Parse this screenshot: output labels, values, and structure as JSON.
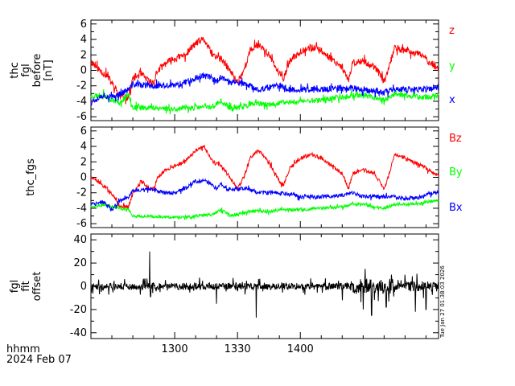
{
  "chart_data": [
    {
      "type": "line",
      "ylabel": [
        "thc",
        "fgl",
        "before",
        "[nT]"
      ],
      "ylim": [
        -6.5,
        6.5
      ],
      "yticks": [
        -6,
        -4,
        -2,
        0,
        2,
        4,
        6
      ],
      "series": [
        {
          "name": "z",
          "color": "#ff0000",
          "seed": 11,
          "noise": 0.45,
          "anchors": [
            [
              0,
              1.2
            ],
            [
              3,
              0.3
            ],
            [
              8,
              -0.8
            ],
            [
              12,
              -2.5
            ],
            [
              14,
              -3.5
            ],
            [
              18,
              -3.5
            ],
            [
              20,
              -1
            ],
            [
              24,
              -0.5
            ],
            [
              28,
              -1.5
            ],
            [
              30,
              -1.5
            ],
            [
              32,
              0
            ],
            [
              36,
              1
            ],
            [
              40,
              1.5
            ],
            [
              45,
              2
            ],
            [
              50,
              3.5
            ],
            [
              54,
              4
            ],
            [
              58,
              2
            ],
            [
              62,
              1.5
            ],
            [
              65,
              0.5
            ],
            [
              70,
              -1.5
            ],
            [
              73,
              0
            ],
            [
              76,
              2.5
            ],
            [
              80,
              3.5
            ],
            [
              85,
              2
            ],
            [
              90,
              -0.5
            ],
            [
              92,
              -1
            ],
            [
              95,
              1.2
            ],
            [
              100,
              2.5
            ],
            [
              105,
              3
            ],
            [
              110,
              2.5
            ],
            [
              115,
              1.5
            ],
            [
              120,
              0.5
            ],
            [
              123,
              -1.5
            ],
            [
              125,
              1
            ],
            [
              130,
              1.2
            ],
            [
              135,
              0.5
            ],
            [
              138,
              -0.5
            ],
            [
              140,
              -1.5
            ],
            [
              142,
              0
            ],
            [
              145,
              3
            ],
            [
              150,
              2.5
            ],
            [
              158,
              2
            ],
            [
              162,
              1
            ],
            [
              166,
              0.2
            ]
          ]
        },
        {
          "name": "y",
          "color": "#00ff00",
          "seed": 23,
          "noise": 0.35,
          "anchors": [
            [
              0,
              -3.3
            ],
            [
              6,
              -3.2
            ],
            [
              10,
              -3.8
            ],
            [
              14,
              -4.2
            ],
            [
              18,
              -3
            ],
            [
              20,
              -4.8
            ],
            [
              28,
              -4.8
            ],
            [
              40,
              -5
            ],
            [
              50,
              -4.8
            ],
            [
              58,
              -4.7
            ],
            [
              62,
              -4
            ],
            [
              67,
              -5
            ],
            [
              75,
              -4.5
            ],
            [
              80,
              -4.3
            ],
            [
              85,
              -4.5
            ],
            [
              90,
              -4.2
            ],
            [
              100,
              -4
            ],
            [
              110,
              -3.8
            ],
            [
              120,
              -3.5
            ],
            [
              125,
              -3.2
            ],
            [
              130,
              -3.2
            ],
            [
              135,
              -3.5
            ],
            [
              140,
              -3.8
            ],
            [
              145,
              -3.2
            ],
            [
              150,
              -3.2
            ],
            [
              158,
              -3.5
            ],
            [
              166,
              -3.3
            ]
          ]
        },
        {
          "name": "x",
          "color": "#0000ff",
          "seed": 37,
          "noise": 0.4,
          "anchors": [
            [
              0,
              -4
            ],
            [
              6,
              -3.2
            ],
            [
              10,
              -3.5
            ],
            [
              14,
              -3
            ],
            [
              18,
              -2.5
            ],
            [
              20,
              -1.8
            ],
            [
              28,
              -2
            ],
            [
              35,
              -2
            ],
            [
              40,
              -2
            ],
            [
              45,
              -1.5
            ],
            [
              50,
              -1
            ],
            [
              55,
              -0.5
            ],
            [
              60,
              -1.5
            ],
            [
              62,
              -0.8
            ],
            [
              65,
              -1.5
            ],
            [
              70,
              -1.5
            ],
            [
              75,
              -2
            ],
            [
              80,
              -2.5
            ],
            [
              85,
              -2.2
            ],
            [
              90,
              -2
            ],
            [
              95,
              -2.5
            ],
            [
              100,
              -2.5
            ],
            [
              110,
              -2.5
            ],
            [
              120,
              -2.3
            ],
            [
              125,
              -2.3
            ],
            [
              130,
              -2.5
            ],
            [
              140,
              -2.8
            ],
            [
              145,
              -2.5
            ],
            [
              150,
              -2.5
            ],
            [
              158,
              -2.5
            ],
            [
              166,
              -2.2
            ]
          ]
        }
      ]
    },
    {
      "type": "line",
      "ylabel": [
        "thc_fgs"
      ],
      "ylim": [
        -6.5,
        6.5
      ],
      "yticks": [
        -6,
        -4,
        -2,
        0,
        2,
        4,
        6
      ],
      "series": [
        {
          "name": "Bz",
          "color": "#ff0000",
          "seed": 51,
          "noise": 0.25,
          "anchors": [
            [
              0,
              0
            ],
            [
              3,
              -0.5
            ],
            [
              8,
              -1.5
            ],
            [
              12,
              -3
            ],
            [
              14,
              -3.8
            ],
            [
              18,
              -3.8
            ],
            [
              20,
              -2
            ],
            [
              24,
              -0.5
            ],
            [
              28,
              -1.5
            ],
            [
              30,
              -1.5
            ],
            [
              32,
              0
            ],
            [
              36,
              1
            ],
            [
              40,
              1.5
            ],
            [
              45,
              2
            ],
            [
              50,
              3.5
            ],
            [
              54,
              4
            ],
            [
              58,
              2
            ],
            [
              62,
              1.5
            ],
            [
              65,
              0.5
            ],
            [
              70,
              -1.5
            ],
            [
              73,
              0
            ],
            [
              76,
              2.5
            ],
            [
              80,
              3.5
            ],
            [
              85,
              2
            ],
            [
              90,
              -0.5
            ],
            [
              92,
              -1
            ],
            [
              95,
              1.2
            ],
            [
              100,
              2.5
            ],
            [
              105,
              3
            ],
            [
              110,
              2.5
            ],
            [
              115,
              1.5
            ],
            [
              120,
              0.5
            ],
            [
              123,
              -1.5
            ],
            [
              125,
              0.5
            ],
            [
              130,
              1
            ],
            [
              135,
              0.5
            ],
            [
              138,
              -0.5
            ],
            [
              140,
              -1.5
            ],
            [
              142,
              0
            ],
            [
              145,
              3
            ],
            [
              150,
              2.5
            ],
            [
              158,
              1.5
            ],
            [
              162,
              0.8
            ],
            [
              166,
              0.2
            ]
          ]
        },
        {
          "name": "By",
          "color": "#00ff00",
          "seed": 63,
          "noise": 0.2,
          "anchors": [
            [
              0,
              -3.8
            ],
            [
              6,
              -3.5
            ],
            [
              10,
              -3.8
            ],
            [
              14,
              -4
            ],
            [
              18,
              -4.2
            ],
            [
              20,
              -5
            ],
            [
              28,
              -5
            ],
            [
              40,
              -5.2
            ],
            [
              50,
              -5
            ],
            [
              58,
              -4.8
            ],
            [
              62,
              -4.2
            ],
            [
              67,
              -5
            ],
            [
              75,
              -4.5
            ],
            [
              80,
              -4.3
            ],
            [
              85,
              -4.5
            ],
            [
              90,
              -4.2
            ],
            [
              100,
              -4.2
            ],
            [
              110,
              -4
            ],
            [
              120,
              -3.8
            ],
            [
              125,
              -3.5
            ],
            [
              130,
              -3.5
            ],
            [
              135,
              -3.8
            ],
            [
              140,
              -4
            ],
            [
              145,
              -3.5
            ],
            [
              150,
              -3.5
            ],
            [
              158,
              -3.3
            ],
            [
              166,
              -3
            ]
          ]
        },
        {
          "name": "Bx",
          "color": "#0000ff",
          "seed": 77,
          "noise": 0.25,
          "anchors": [
            [
              0,
              -3.5
            ],
            [
              6,
              -3.2
            ],
            [
              10,
              -4.2
            ],
            [
              14,
              -3
            ],
            [
              18,
              -2.5
            ],
            [
              20,
              -1.8
            ],
            [
              28,
              -1.5
            ],
            [
              35,
              -2
            ],
            [
              40,
              -2
            ],
            [
              45,
              -1.5
            ],
            [
              50,
              -0.5
            ],
            [
              55,
              -0.5
            ],
            [
              60,
              -1.5
            ],
            [
              62,
              -0.8
            ],
            [
              65,
              -1.5
            ],
            [
              70,
              -1.5
            ],
            [
              75,
              -1.5
            ],
            [
              80,
              -2
            ],
            [
              85,
              -2
            ],
            [
              90,
              -2
            ],
            [
              95,
              -2.2
            ],
            [
              100,
              -2.5
            ],
            [
              110,
              -2.5
            ],
            [
              120,
              -2.3
            ],
            [
              125,
              -2
            ],
            [
              130,
              -2.5
            ],
            [
              140,
              -2.5
            ],
            [
              145,
              -2.5
            ],
            [
              150,
              -2.8
            ],
            [
              158,
              -2.5
            ],
            [
              166,
              -1.8
            ]
          ]
        }
      ]
    },
    {
      "type": "line",
      "ylabel": [
        "fgl",
        "fit",
        "offset"
      ],
      "ylim": [
        -45,
        45
      ],
      "yticks": [
        -40,
        -20,
        0,
        20,
        40
      ],
      "series": [
        {
          "name": "",
          "color": "#000000",
          "seed": 91,
          "noise": 3,
          "spiky": true,
          "anchors": [
            [
              0,
              0
            ],
            [
              166,
              0
            ]
          ],
          "spikes": [
            [
              28,
              30
            ],
            [
              28.5,
              -9
            ],
            [
              60,
              -15
            ],
            [
              79,
              -27
            ],
            [
              120,
              -12
            ],
            [
              130,
              -20
            ],
            [
              131,
              15
            ],
            [
              134,
              -25
            ],
            [
              155,
              -22
            ],
            [
              160,
              -20
            ],
            [
              150,
              10
            ],
            [
              141,
              -18
            ]
          ]
        }
      ]
    }
  ],
  "xaxis": {
    "tick_labels": [
      "1300",
      "1330",
      "1400"
    ],
    "tick_minutes": [
      40,
      70,
      100
    ]
  },
  "footer": {
    "line1": "hhmm",
    "line2": "2024 Feb 07"
  },
  "timestamp": "Tue Jan 27 01:38:03 2026"
}
